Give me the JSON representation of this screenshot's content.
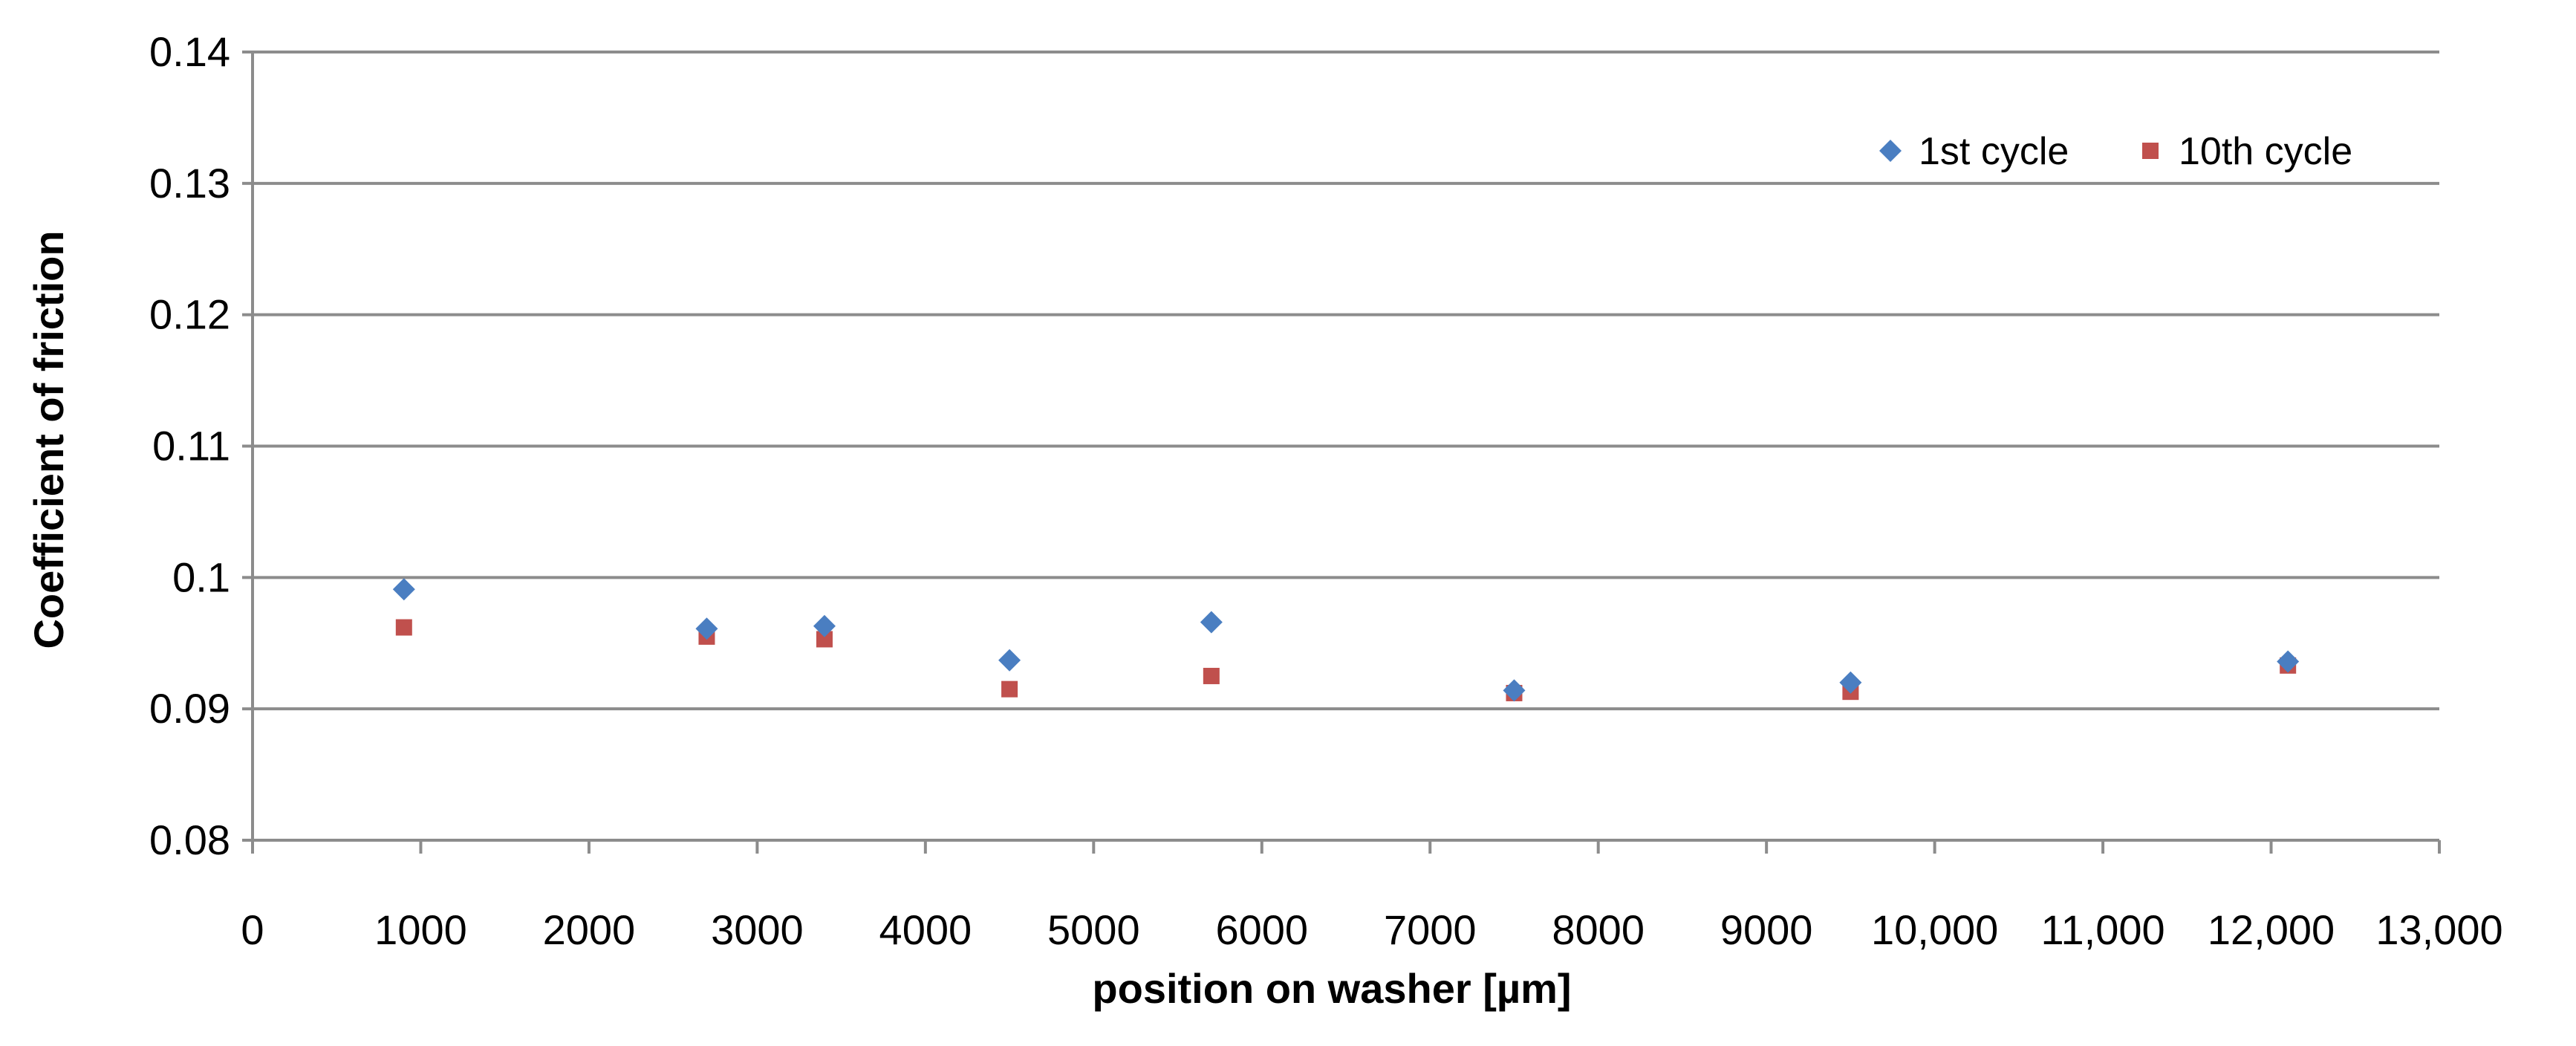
{
  "chart_data": {
    "type": "scatter",
    "title": "",
    "xlabel": "position on washer [µm]",
    "ylabel": "Coefficient of friction",
    "xlim": [
      0,
      13000
    ],
    "ylim": [
      0.08,
      0.14
    ],
    "x_ticks": [
      0,
      1000,
      2000,
      3000,
      4000,
      5000,
      6000,
      7000,
      8000,
      9000,
      10000,
      11000,
      12000,
      13000
    ],
    "x_tick_labels": [
      "0",
      "1000",
      "2000",
      "3000",
      "4000",
      "5000",
      "6000",
      "7000",
      "8000",
      "9000",
      "10,000",
      "11,000",
      "12,000",
      "13,000"
    ],
    "y_ticks": [
      0.08,
      0.09,
      0.1,
      0.11,
      0.12,
      0.13,
      0.14
    ],
    "y_tick_labels": [
      "0.08",
      "0.09",
      "0.1",
      "0.11",
      "0.12",
      "0.13",
      "0.14"
    ],
    "grid": "horizontal",
    "legend_position": "top-right",
    "series": [
      {
        "name": "1st cycle",
        "marker": "diamond",
        "color": "#4A7EC1",
        "points": [
          {
            "x": 900,
            "y": 0.0991
          },
          {
            "x": 2700,
            "y": 0.0961
          },
          {
            "x": 3400,
            "y": 0.0963
          },
          {
            "x": 4500,
            "y": 0.0937
          },
          {
            "x": 5700,
            "y": 0.0966
          },
          {
            "x": 7500,
            "y": 0.0914
          },
          {
            "x": 9500,
            "y": 0.092
          },
          {
            "x": 12100,
            "y": 0.0936
          }
        ]
      },
      {
        "name": "10th cycle",
        "marker": "square",
        "color": "#C0504D",
        "points": [
          {
            "x": 900,
            "y": 0.0962
          },
          {
            "x": 2700,
            "y": 0.0955
          },
          {
            "x": 3400,
            "y": 0.0953
          },
          {
            "x": 4500,
            "y": 0.0915
          },
          {
            "x": 5700,
            "y": 0.0925
          },
          {
            "x": 7500,
            "y": 0.0912
          },
          {
            "x": 9500,
            "y": 0.0913
          },
          {
            "x": 12100,
            "y": 0.0933
          }
        ]
      }
    ]
  }
}
